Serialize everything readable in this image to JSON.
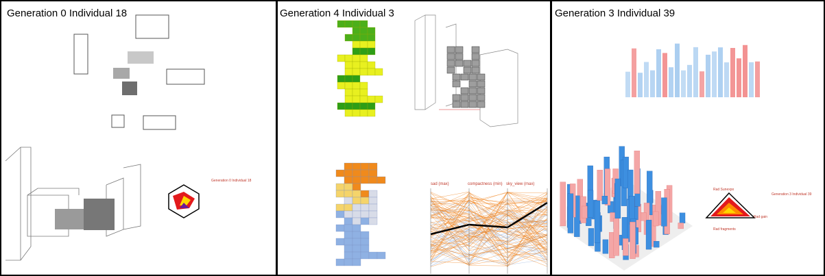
{
  "panels": [
    {
      "title": "Generation 0 Individual 18",
      "details": "Generation 0 Individual 18"
    },
    {
      "title": "Generation 4 Individual 3",
      "axes": [
        "sad (max)",
        "compactness (min)",
        "sky_view (max)"
      ]
    },
    {
      "title": "Generation 3 Individual 39",
      "details": "Generation 3 Individual 39",
      "radar": [
        "Rad gain",
        "Rad Sunexpo",
        "Rad fragments"
      ]
    }
  ]
}
